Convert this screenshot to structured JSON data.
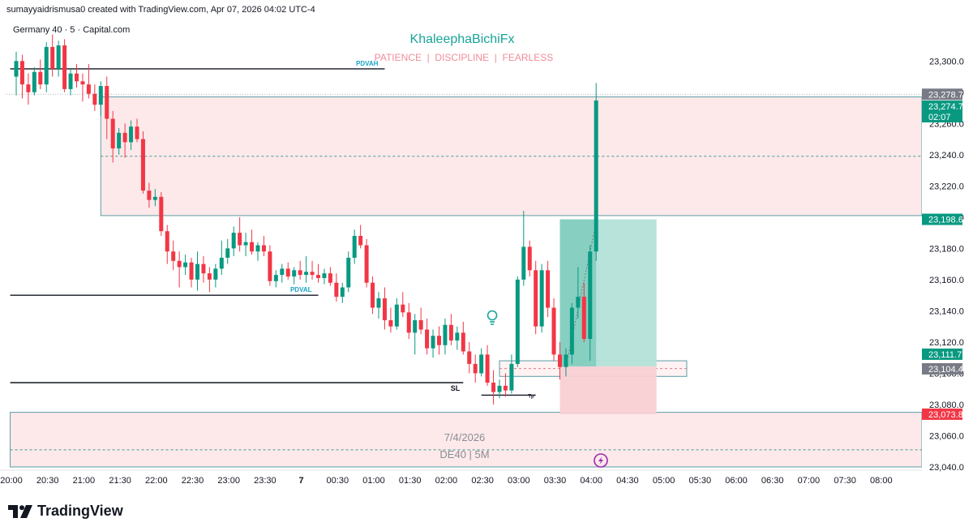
{
  "header": {
    "credit": "sumayyaidrismusa0 created with TradingView.com, Apr 07, 2026 04:02 UTC-4"
  },
  "footer": {
    "brand": "TradingView"
  },
  "colors": {
    "up": "#089981",
    "down": "#f23645",
    "zone": "#fde9ea",
    "zone_border": "#5b9ea6",
    "target": "#b4e1d8",
    "stop": "#f9d0d4",
    "teal_text": "#1aa49a",
    "pink_text": "#f08d99"
  },
  "chart_data": {
    "type": "candlestick",
    "symbol": "Germany 40 · 5 · Capital.com",
    "watermark_title": "KhaleephaBichiFx",
    "watermark_subtitle": "PATIENCE  |  DISCIPLINE  |  FEARLESS",
    "session_date": "7/4/2026",
    "session_symbol": "DE40 | 5M",
    "ylim": [
      23040,
      23310
    ],
    "y_ticks": [
      "23,300.0",
      "23,280.0",
      "23,260.0",
      "23,240.0",
      "23,220.0",
      "23,200.0",
      "23,180.0",
      "23,160.0",
      "23,140.0",
      "23,120.0",
      "23,100.0",
      "23,080.0",
      "23,060.0",
      "23,040.0"
    ],
    "y_tick_values": [
      23300,
      23280,
      23260,
      23240,
      23220,
      23200,
      23180,
      23160,
      23140,
      23120,
      23100,
      23080,
      23060,
      23040
    ],
    "x_ticks": [
      "20:00",
      "20:30",
      "21:00",
      "21:30",
      "22:00",
      "22:30",
      "23:00",
      "23:30",
      "7",
      "00:30",
      "01:00",
      "01:30",
      "02:00",
      "02:30",
      "03:00",
      "03:30",
      "04:00",
      "04:30",
      "05:00",
      "05:30",
      "06:00",
      "06:30",
      "07:00",
      "07:30",
      "08:00"
    ],
    "x_tick_bars": [
      0,
      6,
      12,
      18,
      24,
      30,
      36,
      42,
      48,
      54,
      60,
      66,
      72,
      78,
      84,
      90,
      96,
      102,
      108,
      114,
      120,
      126,
      132,
      138,
      144
    ],
    "price_labels": [
      {
        "text": "23,278.7",
        "value": 23278.7,
        "color": "#787b86"
      },
      {
        "text": "23,274.7",
        "value": 23274.7,
        "color": "#089981",
        "sub": "02:07"
      },
      {
        "text": "23,198.6",
        "value": 23198.6,
        "color": "#089981"
      },
      {
        "text": "23,111.7",
        "value": 23111.7,
        "color": "#089981"
      },
      {
        "text": "23,104.4",
        "value": 23104.4,
        "color": "#787b86"
      },
      {
        "text": "23,073.8",
        "value": 23073.8,
        "color": "#f23645"
      }
    ],
    "levels": [
      {
        "label": "PDVAH",
        "price": 23295,
        "from_bar": -1,
        "to_bar": 61
      },
      {
        "label": "PDVAL",
        "price": 23150,
        "from_bar": -1,
        "to_bar": 50
      },
      {
        "label": "SL",
        "price": 23094,
        "from_bar": -1,
        "to_bar": 74
      },
      {
        "label": "Tp",
        "price": 23086,
        "from_bar": 77,
        "to_bar": 86
      }
    ],
    "zones": [
      {
        "name": "supply",
        "top": 23277,
        "bottom": 23201,
        "mid": 23239,
        "from_bar": 14,
        "to_bar": 150
      },
      {
        "name": "demand-low",
        "top": 23075,
        "bottom": 23040,
        "mid": 23051,
        "from_bar": -1,
        "to_bar": 150
      },
      {
        "name": "entry-box",
        "top": 23108,
        "bottom": 23098,
        "mid": 23103,
        "from_bar": 80,
        "to_bar": 111
      }
    ],
    "position": {
      "from_bar": 90,
      "to_bar": 106,
      "entry": 23104.4,
      "target": 23198.6,
      "stop": 23073.8
    },
    "candles": [
      [
        23290,
        23306,
        23278,
        23300
      ],
      [
        23300,
        23304,
        23276,
        23285
      ],
      [
        23285,
        23292,
        23272,
        23280
      ],
      [
        23280,
        23296,
        23278,
        23293
      ],
      [
        23293,
        23301,
        23282,
        23285
      ],
      [
        23285,
        23312,
        23280,
        23309
      ],
      [
        23309,
        23317,
        23290,
        23295
      ],
      [
        23295,
        23313,
        23290,
        23310
      ],
      [
        23310,
        23314,
        23280,
        23282
      ],
      [
        23282,
        23295,
        23278,
        23292
      ],
      [
        23292,
        23298,
        23283,
        23287
      ],
      [
        23287,
        23292,
        23274,
        23285
      ],
      [
        23285,
        23298,
        23276,
        23279
      ],
      [
        23279,
        23285,
        23268,
        23272
      ],
      [
        23272,
        23287,
        23265,
        23284
      ],
      [
        23284,
        23290,
        23250,
        23263
      ],
      [
        23263,
        23268,
        23235,
        23244
      ],
      [
        23244,
        23257,
        23240,
        23254
      ],
      [
        23254,
        23260,
        23238,
        23248
      ],
      [
        23248,
        23262,
        23243,
        23258
      ],
      [
        23258,
        23263,
        23248,
        23250
      ],
      [
        23250,
        23255,
        23215,
        23217
      ],
      [
        23217,
        23222,
        23206,
        23211
      ],
      [
        23211,
        23218,
        23207,
        23213
      ],
      [
        23213,
        23216,
        23188,
        23191
      ],
      [
        23191,
        23195,
        23170,
        23178
      ],
      [
        23178,
        23185,
        23166,
        23172
      ],
      [
        23172,
        23178,
        23155,
        23168
      ],
      [
        23168,
        23176,
        23163,
        23171
      ],
      [
        23171,
        23174,
        23155,
        23160
      ],
      [
        23160,
        23178,
        23153,
        23170
      ],
      [
        23170,
        23175,
        23158,
        23164
      ],
      [
        23164,
        23168,
        23152,
        23160
      ],
      [
        23160,
        23170,
        23155,
        23167
      ],
      [
        23167,
        23185,
        23163,
        23174
      ],
      [
        23174,
        23186,
        23170,
        23180
      ],
      [
        23180,
        23194,
        23175,
        23190
      ],
      [
        23190,
        23200,
        23178,
        23182
      ],
      [
        23182,
        23190,
        23175,
        23184
      ],
      [
        23184,
        23192,
        23176,
        23178
      ],
      [
        23178,
        23184,
        23172,
        23182
      ],
      [
        23182,
        23188,
        23175,
        23178
      ],
      [
        23178,
        23182,
        23156,
        23159
      ],
      [
        23159,
        23166,
        23155,
        23163
      ],
      [
        23163,
        23170,
        23158,
        23167
      ],
      [
        23167,
        23171,
        23160,
        23162
      ],
      [
        23162,
        23168,
        23157,
        23166
      ],
      [
        23166,
        23172,
        23160,
        23163
      ],
      [
        23163,
        23175,
        23158,
        23165
      ],
      [
        23165,
        23172,
        23160,
        23163
      ],
      [
        23163,
        23170,
        23158,
        23161
      ],
      [
        23161,
        23167,
        23157,
        23164
      ],
      [
        23164,
        23168,
        23156,
        23158
      ],
      [
        23158,
        23164,
        23146,
        23149
      ],
      [
        23149,
        23158,
        23145,
        23155
      ],
      [
        23155,
        23178,
        23152,
        23174
      ],
      [
        23174,
        23192,
        23170,
        23188
      ],
      [
        23188,
        23195,
        23180,
        23182
      ],
      [
        23182,
        23186,
        23155,
        23158
      ],
      [
        23158,
        23162,
        23138,
        23142
      ],
      [
        23142,
        23152,
        23135,
        23148
      ],
      [
        23148,
        23155,
        23128,
        23134
      ],
      [
        23134,
        23142,
        23126,
        23130
      ],
      [
        23130,
        23148,
        23128,
        23144
      ],
      [
        23144,
        23152,
        23136,
        23139
      ],
      [
        23139,
        23145,
        23122,
        23126
      ],
      [
        23126,
        23138,
        23112,
        23134
      ],
      [
        23134,
        23142,
        23125,
        23128
      ],
      [
        23128,
        23135,
        23112,
        23116
      ],
      [
        23116,
        23128,
        23110,
        23124
      ],
      [
        23124,
        23130,
        23112,
        23118
      ],
      [
        23118,
        23135,
        23112,
        23131
      ],
      [
        23131,
        23138,
        23118,
        23121
      ],
      [
        23121,
        23130,
        23115,
        23126
      ],
      [
        23126,
        23133,
        23112,
        23114
      ],
      [
        23114,
        23120,
        23100,
        23106
      ],
      [
        23106,
        23112,
        23094,
        23100
      ],
      [
        23100,
        23116,
        23098,
        23112
      ],
      [
        23112,
        23118,
        23092,
        23094
      ],
      [
        23094,
        23102,
        23080,
        23088
      ],
      [
        23088,
        23096,
        23084,
        23092
      ],
      [
        23092,
        23100,
        23085,
        23089
      ],
      [
        23089,
        23112,
        23087,
        23106
      ],
      [
        23106,
        23162,
        23104,
        23160
      ],
      [
        23160,
        23204,
        23156,
        23181
      ],
      [
        23181,
        23185,
        23162,
        23166
      ],
      [
        23166,
        23172,
        23125,
        23130
      ],
      [
        23130,
        23170,
        23126,
        23166
      ],
      [
        23166,
        23172,
        23136,
        23142
      ],
      [
        23142,
        23148,
        23108,
        23112
      ],
      [
        23112,
        23120,
        23096,
        23104
      ],
      [
        23104,
        23116,
        23098,
        23112
      ],
      [
        23112,
        23145,
        23106,
        23142
      ],
      [
        23142,
        23168,
        23135,
        23149
      ],
      [
        23149,
        23158,
        23120,
        23122
      ],
      [
        23122,
        23182,
        23108,
        23178
      ],
      [
        23178,
        23286,
        23172,
        23274.7
      ]
    ]
  }
}
